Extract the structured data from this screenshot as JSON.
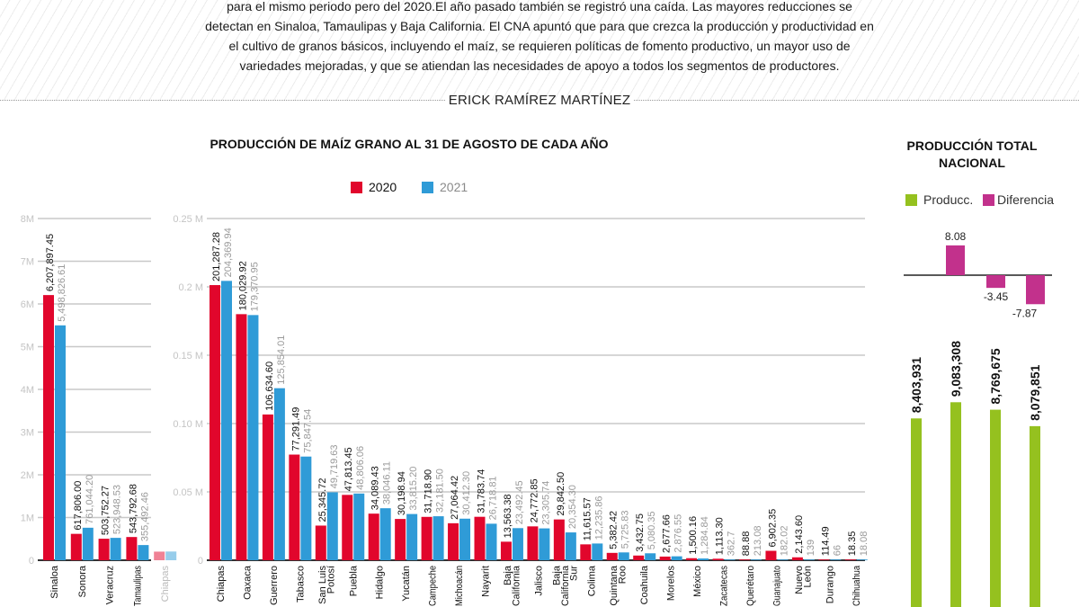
{
  "intro": {
    "lines": [
      "para el mismo periodo pero del 2020.El año pasado también se registró una caída. Las mayores reducciones se",
      "detectan en Sinaloa, Tamaulipas y Baja California. El CNA apuntó que para que crezca la producción y productividad en",
      "el cultivo de granos básicos, incluyendo el maíz, se requieren políticas de fomento productivo, un mayor uso de",
      "variedades mejoradas, y que se atiendan las necesidades de apoyo a todos los segmentos de productores."
    ],
    "author": "ERICK RAMÍREZ MARTÍNEZ"
  },
  "colors": {
    "y2020": "#e1062c",
    "y2021": "#2f9bd7",
    "produccion": "#95c11f",
    "diferencia": "#c2318c"
  },
  "chart_data": [
    {
      "type": "bar",
      "title": "PRODUCCIÓN DE MAÍZ GRANO AL 31 DE AGOSTO DE CADA AÑO",
      "legend": [
        "2020",
        "2021"
      ],
      "legend_placement": "top",
      "ylim": [
        0,
        8000000
      ],
      "yticks": [
        "0",
        "1M",
        "2M",
        "3M",
        "4M",
        "5M",
        "6M",
        "7M",
        "8M"
      ],
      "grid": true,
      "categories": [
        "Sinaloa",
        "Sonora",
        "Veracruz",
        "Tamaulipas",
        "Chiapas"
      ],
      "series": [
        {
          "name": "2020",
          "labels": [
            "6,207,897.45",
            "617,806.00",
            "503,752.27",
            "543,792.68",
            ""
          ],
          "values": [
            6207897.45,
            617806.0,
            503752.27,
            543792.68,
            201287.28
          ]
        },
        {
          "name": "2021",
          "labels": [
            "5,498,826.61",
            "761,044.20",
            "523,948.53",
            "355,492.46",
            ""
          ],
          "values": [
            5498826.61,
            761044.2,
            523948.53,
            355492.46,
            204369.94
          ]
        }
      ]
    },
    {
      "type": "bar",
      "ylim": [
        0,
        250000
      ],
      "yticks": [
        "0",
        "0.05 M",
        "0.10 M",
        "0.15 M",
        "0.2 M",
        "0.25 M"
      ],
      "grid": true,
      "categories": [
        "Chiapas",
        "Oaxaca",
        "Guerrero",
        "Tabasco",
        "San Luis Potosí",
        "Puebla",
        "Hidalgo",
        "Yucatán",
        "Campeche",
        "Michoacán",
        "Nayarit",
        "Baja California",
        "Jalisco",
        "Baja California Sur",
        "Colima",
        "Quintana Roo",
        "Coahuila",
        "Morelos",
        "México",
        "Zacatecas",
        "Querétaro",
        "Guanajuato",
        "Nuevo León",
        "Durango",
        "Chihuahua"
      ],
      "series": [
        {
          "name": "2020",
          "labels": [
            "201,287.28",
            "180,029.92",
            "106,634.60",
            "77,291.49",
            "25,345.72",
            "47,813.45",
            "34,089.43",
            "30,198.94",
            "31,718.90",
            "27,064.42",
            "31,783.74",
            "13,563.38",
            "24,772.85",
            "29,842.50",
            "11,615.57",
            "5,382.42",
            "3,432.75",
            "2,677.66",
            "1,500.16",
            "1,113.30",
            "88.88",
            "6,902.35",
            "2,143.60",
            "114.49",
            "18.35"
          ]
        },
        {
          "name": "2021",
          "labels": [
            "204,369.94",
            "179,370.95",
            "125,854.01",
            "75,847.54",
            "49,719.63",
            "48,806.06",
            "38,046.11",
            "33,815.20",
            "32,181.50",
            "30,412.30",
            "26,718.81",
            "23,492.45",
            "23,305.74",
            "20,354.30",
            "12,235.86",
            "5,725.83",
            "5,080.35",
            "2,876.55",
            "1,284.84",
            "362.7",
            "213.08",
            "182.02",
            "139",
            "66",
            "18.08"
          ]
        }
      ]
    },
    {
      "type": "bar",
      "title": "PRODUCCIÓN TOTAL NACIONAL",
      "legend": [
        "Producc.",
        "Diferencia"
      ],
      "legend_placement": "top",
      "series": [
        {
          "name": "Producc.",
          "labels": [
            "8,403,931",
            "9,083,308",
            "8,769,675",
            "8,079,851"
          ],
          "values": [
            8403931,
            9083308,
            8769675,
            8079851
          ]
        },
        {
          "name": "Diferencia",
          "labels": [
            "",
            "8.08",
            "-3.45",
            "-7.87"
          ],
          "values": [
            null,
            8.08,
            -3.45,
            -7.87
          ]
        }
      ]
    }
  ]
}
